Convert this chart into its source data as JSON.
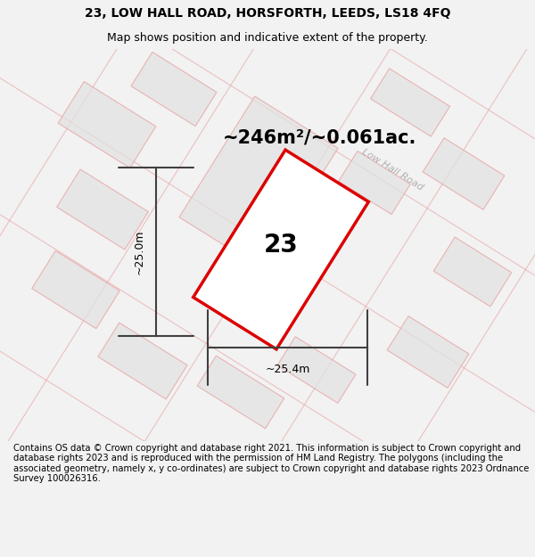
{
  "title_line1": "23, LOW HALL ROAD, HORSFORTH, LEEDS, LS18 4FQ",
  "title_line2": "Map shows position and indicative extent of the property.",
  "footer_text": "Contains OS data © Crown copyright and database right 2021. This information is subject to Crown copyright and database rights 2023 and is reproduced with the permission of HM Land Registry. The polygons (including the associated geometry, namely x, y co-ordinates) are subject to Crown copyright and database rights 2023 Ordnance Survey 100026316.",
  "area_label": "~246m²/~0.061ac.",
  "road_label": "Low Hall Road",
  "property_number": "23",
  "width_label": "~25.4m",
  "height_label": "~25.0m",
  "bg_color": "#f2f2f2",
  "map_bg_color": "#ffffff",
  "property_fill": "#ffffff",
  "property_edge_color": "#dd0000",
  "neighbor_fill": "#e2e2e2",
  "neighbor_edge_color": "#e8a0a0",
  "road_line_color": "#e8a0a0",
  "dim_line_color": "#404040",
  "title_fontsize": 10,
  "subtitle_fontsize": 9,
  "footer_fontsize": 7.2,
  "area_fontsize": 15,
  "road_fontsize": 8,
  "number_fontsize": 20,
  "dim_fontsize": 9
}
